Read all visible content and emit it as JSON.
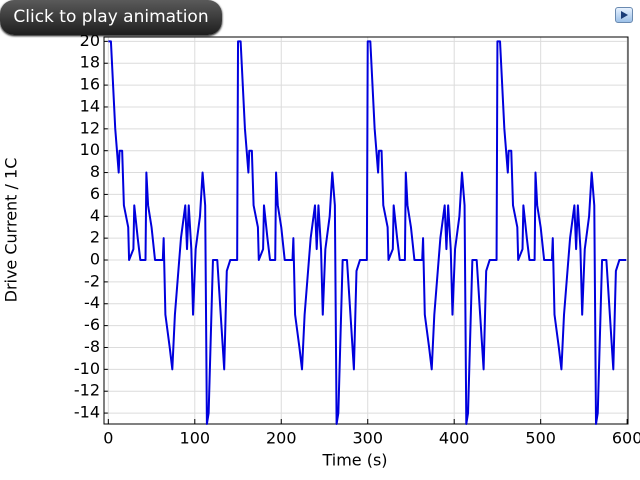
{
  "toolbar": {
    "play_button": "Click to play animation"
  },
  "chart_data": {
    "type": "line",
    "xlabel": "Time (s)",
    "ylabel": "Drive Current / 1C",
    "color": "#0000dd",
    "grid": true,
    "xlim": [
      -5,
      601
    ],
    "ylim": [
      -15,
      20.4
    ],
    "xticks": [
      0,
      100,
      200,
      300,
      400,
      500,
      600
    ],
    "yticks": [
      -14,
      -12,
      -10,
      -8,
      -6,
      -4,
      -2,
      0,
      2,
      4,
      6,
      8,
      10,
      12,
      14,
      16,
      18,
      20
    ],
    "x": [
      0,
      3,
      8,
      12,
      13,
      16,
      18,
      23,
      24,
      29,
      30,
      34,
      37,
      43,
      44,
      46,
      50,
      54,
      63,
      64,
      66,
      71,
      74,
      77,
      81,
      84,
      89,
      91,
      93,
      96,
      98,
      101,
      106,
      109,
      112,
      114,
      116,
      121,
      126,
      130,
      134,
      137,
      141,
      149,
      150,
      153,
      158,
      162,
      163,
      166,
      168,
      173,
      174,
      179,
      180,
      184,
      187,
      193,
      194,
      196,
      200,
      204,
      213,
      214,
      216,
      221,
      224,
      227,
      231,
      234,
      239,
      241,
      243,
      246,
      248,
      251,
      256,
      259,
      262,
      264,
      266,
      271,
      276,
      280,
      284,
      287,
      291,
      299,
      300,
      303,
      308,
      312,
      313,
      316,
      318,
      323,
      324,
      329,
      330,
      334,
      337,
      343,
      344,
      346,
      350,
      354,
      363,
      364,
      366,
      371,
      374,
      377,
      381,
      384,
      389,
      391,
      393,
      396,
      398,
      401,
      406,
      409,
      412,
      414,
      416,
      421,
      426,
      430,
      434,
      437,
      441,
      449,
      450,
      453,
      458,
      462,
      463,
      466,
      468,
      473,
      474,
      479,
      480,
      484,
      487,
      493,
      494,
      496,
      500,
      504,
      513,
      514,
      516,
      521,
      524,
      527,
      531,
      534,
      539,
      541,
      543,
      546,
      548,
      551,
      556,
      559,
      562,
      564,
      566,
      571,
      576,
      580,
      584,
      587,
      591,
      599
    ],
    "values": [
      20,
      20,
      12,
      8,
      10,
      10,
      5,
      3,
      0,
      1,
      5,
      2,
      0,
      0,
      8,
      5,
      3,
      0,
      0,
      2,
      -5,
      -8,
      -10,
      -5,
      -1,
      2,
      5,
      1,
      5,
      1,
      -5,
      1,
      4,
      8,
      5,
      -15,
      -14,
      0,
      0,
      -5,
      -10,
      -1,
      0,
      0,
      20,
      20,
      12,
      8,
      10,
      10,
      5,
      3,
      0,
      1,
      5,
      2,
      0,
      0,
      8,
      5,
      3,
      0,
      0,
      2,
      -5,
      -8,
      -10,
      -5,
      -1,
      2,
      5,
      1,
      5,
      1,
      -5,
      1,
      4,
      8,
      5,
      -15,
      -14,
      0,
      0,
      -5,
      -10,
      -1,
      0,
      0,
      20,
      20,
      12,
      8,
      10,
      10,
      5,
      3,
      0,
      1,
      5,
      2,
      0,
      0,
      8,
      5,
      3,
      0,
      0,
      2,
      -5,
      -8,
      -10,
      -5,
      -1,
      2,
      5,
      1,
      5,
      1,
      -5,
      1,
      4,
      8,
      5,
      -15,
      -14,
      0,
      0,
      -5,
      -10,
      -1,
      0,
      0,
      20,
      20,
      12,
      8,
      10,
      10,
      5,
      3,
      0,
      1,
      5,
      2,
      0,
      0,
      8,
      5,
      3,
      0,
      0,
      2,
      -5,
      -8,
      -10,
      -5,
      -1,
      2,
      5,
      1,
      5,
      1,
      -5,
      1,
      4,
      8,
      5,
      -15,
      -14,
      0,
      0,
      -5,
      -10,
      -1,
      0,
      0
    ]
  }
}
